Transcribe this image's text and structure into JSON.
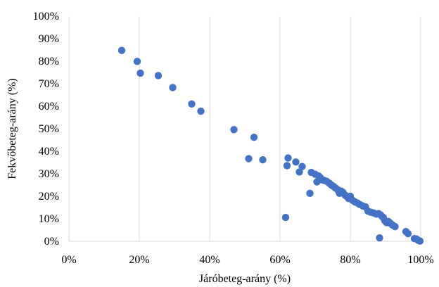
{
  "chart_data": {
    "type": "scatter",
    "title": "",
    "xlabel": "Járóbeteg-arány (%)",
    "ylabel": "Fekvőbeteg-arány (%)",
    "xlim": [
      0,
      100
    ],
    "ylim": [
      0,
      100
    ],
    "x_ticks": [
      "0%",
      "20%",
      "40%",
      "60%",
      "80%",
      "100%"
    ],
    "y_ticks": [
      "0%",
      "10%",
      "20%",
      "30%",
      "40%",
      "50%",
      "60%",
      "70%",
      "80%",
      "90%",
      "100%"
    ],
    "grid": "vertical",
    "marker_color": "#4472C4",
    "series": [
      {
        "x": [
          15.0,
          19.4,
          20.3,
          25.4,
          29.5,
          34.9,
          37.5,
          46.9,
          51.1,
          52.6,
          55.1,
          61.6,
          62.0,
          62.3,
          64.5,
          65.5,
          66.3,
          68.5,
          68.9,
          70.0,
          70.5,
          71.0,
          71.5,
          72.0,
          72.6,
          73.3,
          74.0,
          74.6,
          75.2,
          75.8,
          76.4,
          76.9,
          77.4,
          77.9,
          78.5,
          79.0,
          79.5,
          80.0,
          80.6,
          81.3,
          82.0,
          82.7,
          83.5,
          84.3,
          85.0,
          85.8,
          86.6,
          87.4,
          88.0,
          88.3,
          88.6,
          89.0,
          89.4,
          89.8,
          90.3,
          90.8,
          91.4,
          92.0,
          92.7,
          95.8,
          96.4,
          98.2,
          98.8,
          99.3,
          99.8
        ],
        "y": [
          84.8,
          79.9,
          74.7,
          73.6,
          68.3,
          61.0,
          57.8,
          49.6,
          36.7,
          46.2,
          36.2,
          10.6,
          33.6,
          37.0,
          35.2,
          30.8,
          33.2,
          21.3,
          30.6,
          29.8,
          26.4,
          29.0,
          28.2,
          27.3,
          27.0,
          26.6,
          25.8,
          25.0,
          24.4,
          23.6,
          22.9,
          21.3,
          22.3,
          21.7,
          20.5,
          19.9,
          19.0,
          20.0,
          18.2,
          17.5,
          17.0,
          16.3,
          15.7,
          15.3,
          13.4,
          12.9,
          12.6,
          12.1,
          12.3,
          1.5,
          11.7,
          11.0,
          10.5,
          9.1,
          8.3,
          8.8,
          8.0,
          7.2,
          6.5,
          4.3,
          3.4,
          1.2,
          1.0,
          0.4,
          0.1
        ]
      }
    ]
  }
}
